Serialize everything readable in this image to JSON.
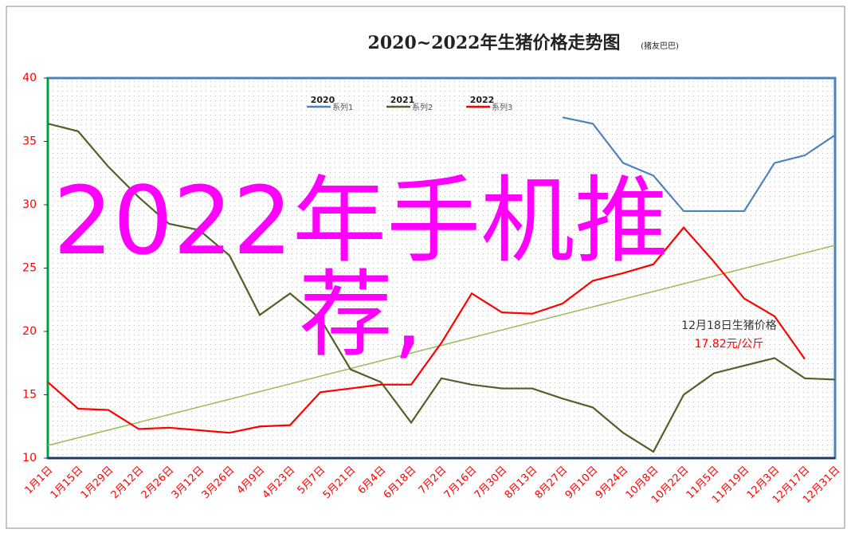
{
  "chart_data": {
    "type": "line",
    "title": "2020~2022年生猪价格走势图",
    "subtitle": "(猪友巴巴)",
    "categories": [
      "1月1日",
      "1月15日",
      "1月29日",
      "2月12日",
      "2月26日",
      "3月12日",
      "3月26日",
      "4月9日",
      "4月23日",
      "5月7日",
      "5月21日",
      "6月4日",
      "6月18日",
      "7月2日",
      "7月16日",
      "7月30日",
      "8月13日",
      "8月27日",
      "9月10日",
      "9月24日",
      "10月8日",
      "10月22日",
      "11月5日",
      "11月19日",
      "12月3日",
      "12月17日",
      "12月31日"
    ],
    "series": [
      {
        "name": "2020",
        "legend_label": "系列1",
        "color": "#4f81bd",
        "values": [
          null,
          null,
          null,
          null,
          null,
          null,
          null,
          null,
          null,
          null,
          null,
          null,
          null,
          null,
          null,
          null,
          null,
          36.9,
          36.4,
          33.3,
          32.3,
          29.5,
          29.5,
          29.5,
          33.3,
          33.9,
          35.5
        ]
      },
      {
        "name": "2021",
        "legend_label": "系列2",
        "color": "#4f6228",
        "values": [
          36.4,
          35.8,
          33,
          30.6,
          28.5,
          28,
          26,
          21.3,
          23,
          21,
          17,
          16,
          12.8,
          16.3,
          15.8,
          15.5,
          15.5,
          14.7,
          14,
          12,
          10.5,
          15,
          16.7,
          17.3,
          17.9,
          16.3,
          16.2
        ]
      },
      {
        "name": "2022",
        "legend_label": "系列3",
        "color": "#ff0000",
        "values": [
          16,
          13.9,
          13.8,
          12.3,
          12.4,
          12.2,
          12,
          12.5,
          12.6,
          15.2,
          15.5,
          15.8,
          15.8,
          19.1,
          23,
          21.5,
          21.4,
          22.2,
          24,
          24.6,
          25.3,
          28.2,
          25.5,
          22.6,
          21.2,
          17.82,
          null
        ]
      }
    ],
    "trendline": {
      "color": "#9bbb59",
      "values": [
        11,
        26.8
      ]
    },
    "annotation": {
      "title": "12月18日生猪价格",
      "value_label": "17.82元/公斤"
    },
    "overlay_text": "2022年手机推荐,",
    "ylim": [
      10,
      40
    ],
    "yticks": [
      10,
      15,
      20,
      25,
      30,
      35,
      40
    ],
    "grid": true
  }
}
